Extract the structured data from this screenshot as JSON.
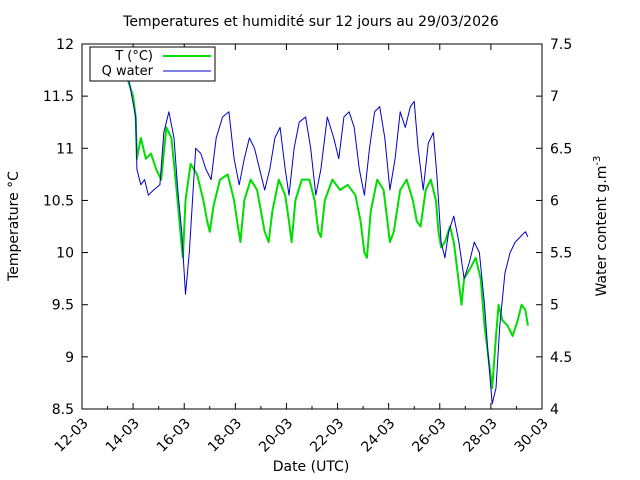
{
  "chart_data": {
    "type": "line",
    "title": "Temperatures et humidité sur 12 jours au 29/03/2026",
    "xlabel": "Date (UTC)",
    "ylabel_left": "Temperature °C",
    "ylabel_right_base": "Water content g.m",
    "ylabel_right_sup": "-3",
    "xlim": [
      12,
      30
    ],
    "x_ticks": [
      {
        "v": 12,
        "label": "12-03"
      },
      {
        "v": 14,
        "label": "14-03"
      },
      {
        "v": 16,
        "label": "16-03"
      },
      {
        "v": 18,
        "label": "18-03"
      },
      {
        "v": 20,
        "label": "20-03"
      },
      {
        "v": 22,
        "label": "22-03"
      },
      {
        "v": 24,
        "label": "24-03"
      },
      {
        "v": 26,
        "label": "26-03"
      },
      {
        "v": 28,
        "label": "28-03"
      },
      {
        "v": 30,
        "label": "30-03"
      }
    ],
    "ylim_left": [
      8.5,
      12
    ],
    "y_ticks_left": [
      {
        "v": 8.5,
        "label": "8.5"
      },
      {
        "v": 9,
        "label": "9"
      },
      {
        "v": 9.5,
        "label": "9.5"
      },
      {
        "v": 10,
        "label": "10"
      },
      {
        "v": 10.5,
        "label": "10.5"
      },
      {
        "v": 11,
        "label": "11"
      },
      {
        "v": 11.5,
        "label": "11.5"
      },
      {
        "v": 12,
        "label": "12"
      }
    ],
    "ylim_right": [
      4,
      7.5
    ],
    "y_ticks_right": [
      {
        "v": 4,
        "label": "4"
      },
      {
        "v": 4.5,
        "label": "4.5"
      },
      {
        "v": 5,
        "label": "5"
      },
      {
        "v": 5.5,
        "label": "5.5"
      },
      {
        "v": 6,
        "label": "6"
      },
      {
        "v": 6.5,
        "label": "6.5"
      },
      {
        "v": 7,
        "label": "7"
      },
      {
        "v": 7.5,
        "label": "7.5"
      }
    ],
    "legend_position": "top-left",
    "series": [
      {
        "name": "T (°C)",
        "axis": "left",
        "color": "#00dd00",
        "stroke_width": 2,
        "points": [
          [
            13.8,
            11.65
          ],
          [
            14.0,
            11.5
          ],
          [
            14.1,
            11.3
          ],
          [
            14.15,
            10.9
          ],
          [
            14.3,
            11.1
          ],
          [
            14.5,
            10.9
          ],
          [
            14.7,
            10.95
          ],
          [
            14.9,
            10.8
          ],
          [
            15.1,
            10.7
          ],
          [
            15.3,
            11.2
          ],
          [
            15.5,
            11.1
          ],
          [
            15.7,
            10.6
          ],
          [
            15.85,
            10.2
          ],
          [
            15.95,
            9.95
          ],
          [
            16.05,
            10.5
          ],
          [
            16.25,
            10.85
          ],
          [
            16.5,
            10.75
          ],
          [
            16.75,
            10.5
          ],
          [
            16.9,
            10.3
          ],
          [
            17.0,
            10.2
          ],
          [
            17.15,
            10.45
          ],
          [
            17.4,
            10.7
          ],
          [
            17.7,
            10.75
          ],
          [
            17.95,
            10.5
          ],
          [
            18.1,
            10.25
          ],
          [
            18.2,
            10.1
          ],
          [
            18.35,
            10.5
          ],
          [
            18.6,
            10.7
          ],
          [
            18.85,
            10.6
          ],
          [
            19.0,
            10.4
          ],
          [
            19.15,
            10.2
          ],
          [
            19.3,
            10.1
          ],
          [
            19.45,
            10.4
          ],
          [
            19.7,
            10.7
          ],
          [
            19.95,
            10.55
          ],
          [
            20.1,
            10.3
          ],
          [
            20.2,
            10.1
          ],
          [
            20.35,
            10.5
          ],
          [
            20.6,
            10.7
          ],
          [
            20.9,
            10.7
          ],
          [
            21.1,
            10.5
          ],
          [
            21.25,
            10.2
          ],
          [
            21.35,
            10.15
          ],
          [
            21.5,
            10.5
          ],
          [
            21.8,
            10.7
          ],
          [
            22.1,
            10.6
          ],
          [
            22.4,
            10.65
          ],
          [
            22.7,
            10.55
          ],
          [
            22.9,
            10.3
          ],
          [
            23.05,
            10.0
          ],
          [
            23.15,
            9.95
          ],
          [
            23.3,
            10.4
          ],
          [
            23.55,
            10.7
          ],
          [
            23.8,
            10.6
          ],
          [
            23.95,
            10.3
          ],
          [
            24.05,
            10.1
          ],
          [
            24.2,
            10.2
          ],
          [
            24.45,
            10.6
          ],
          [
            24.7,
            10.7
          ],
          [
            24.95,
            10.5
          ],
          [
            25.1,
            10.3
          ],
          [
            25.25,
            10.25
          ],
          [
            25.45,
            10.6
          ],
          [
            25.65,
            10.7
          ],
          [
            25.85,
            10.5
          ],
          [
            25.95,
            10.2
          ],
          [
            26.05,
            10.05
          ],
          [
            26.2,
            10.1
          ],
          [
            26.4,
            10.25
          ],
          [
            26.55,
            10.1
          ],
          [
            26.7,
            9.8
          ],
          [
            26.85,
            9.5
          ],
          [
            26.95,
            9.75
          ],
          [
            27.2,
            9.85
          ],
          [
            27.4,
            9.95
          ],
          [
            27.6,
            9.75
          ],
          [
            27.75,
            9.3
          ],
          [
            27.9,
            9.0
          ],
          [
            28.05,
            8.7
          ],
          [
            28.2,
            9.2
          ],
          [
            28.3,
            9.5
          ],
          [
            28.45,
            9.35
          ],
          [
            28.65,
            9.3
          ],
          [
            28.85,
            9.2
          ],
          [
            29.05,
            9.35
          ],
          [
            29.2,
            9.5
          ],
          [
            29.35,
            9.45
          ],
          [
            29.45,
            9.3
          ]
        ]
      },
      {
        "name": "Q water",
        "axis": "right",
        "color": "#0000cc",
        "stroke_width": 1,
        "points": [
          [
            13.8,
            7.2
          ],
          [
            13.95,
            7.0
          ],
          [
            14.1,
            6.8
          ],
          [
            14.15,
            6.3
          ],
          [
            14.3,
            6.15
          ],
          [
            14.45,
            6.2
          ],
          [
            14.6,
            6.05
          ],
          [
            14.8,
            6.1
          ],
          [
            15.05,
            6.15
          ],
          [
            15.2,
            6.65
          ],
          [
            15.4,
            6.85
          ],
          [
            15.6,
            6.6
          ],
          [
            15.75,
            6.1
          ],
          [
            15.9,
            5.7
          ],
          [
            16.05,
            5.1
          ],
          [
            16.2,
            5.5
          ],
          [
            16.45,
            6.5
          ],
          [
            16.65,
            6.45
          ],
          [
            16.85,
            6.3
          ],
          [
            17.05,
            6.2
          ],
          [
            17.25,
            6.6
          ],
          [
            17.5,
            6.8
          ],
          [
            17.75,
            6.85
          ],
          [
            17.95,
            6.4
          ],
          [
            18.15,
            6.15
          ],
          [
            18.35,
            6.4
          ],
          [
            18.55,
            6.6
          ],
          [
            18.75,
            6.5
          ],
          [
            18.95,
            6.3
          ],
          [
            19.15,
            6.1
          ],
          [
            19.35,
            6.3
          ],
          [
            19.55,
            6.6
          ],
          [
            19.75,
            6.7
          ],
          [
            19.95,
            6.3
          ],
          [
            20.1,
            6.05
          ],
          [
            20.3,
            6.5
          ],
          [
            20.5,
            6.75
          ],
          [
            20.75,
            6.8
          ],
          [
            20.95,
            6.5
          ],
          [
            21.15,
            6.05
          ],
          [
            21.35,
            6.3
          ],
          [
            21.6,
            6.8
          ],
          [
            21.85,
            6.6
          ],
          [
            22.05,
            6.4
          ],
          [
            22.25,
            6.8
          ],
          [
            22.45,
            6.85
          ],
          [
            22.65,
            6.7
          ],
          [
            22.85,
            6.3
          ],
          [
            23.05,
            6.05
          ],
          [
            23.25,
            6.5
          ],
          [
            23.45,
            6.85
          ],
          [
            23.65,
            6.9
          ],
          [
            23.85,
            6.6
          ],
          [
            24.05,
            6.1
          ],
          [
            24.25,
            6.4
          ],
          [
            24.45,
            6.85
          ],
          [
            24.65,
            6.7
          ],
          [
            24.85,
            6.9
          ],
          [
            25.0,
            6.95
          ],
          [
            25.15,
            6.5
          ],
          [
            25.35,
            6.1
          ],
          [
            25.55,
            6.55
          ],
          [
            25.75,
            6.65
          ],
          [
            25.9,
            6.2
          ],
          [
            26.05,
            5.6
          ],
          [
            26.2,
            5.45
          ],
          [
            26.35,
            5.7
          ],
          [
            26.55,
            5.85
          ],
          [
            26.75,
            5.6
          ],
          [
            26.95,
            5.25
          ],
          [
            27.15,
            5.4
          ],
          [
            27.35,
            5.6
          ],
          [
            27.55,
            5.5
          ],
          [
            27.75,
            5.0
          ],
          [
            27.9,
            4.5
          ],
          [
            28.05,
            4.05
          ],
          [
            28.2,
            4.2
          ],
          [
            28.35,
            4.8
          ],
          [
            28.55,
            5.3
          ],
          [
            28.75,
            5.5
          ],
          [
            28.95,
            5.6
          ],
          [
            29.15,
            5.65
          ],
          [
            29.35,
            5.7
          ],
          [
            29.45,
            5.65
          ]
        ]
      }
    ]
  }
}
